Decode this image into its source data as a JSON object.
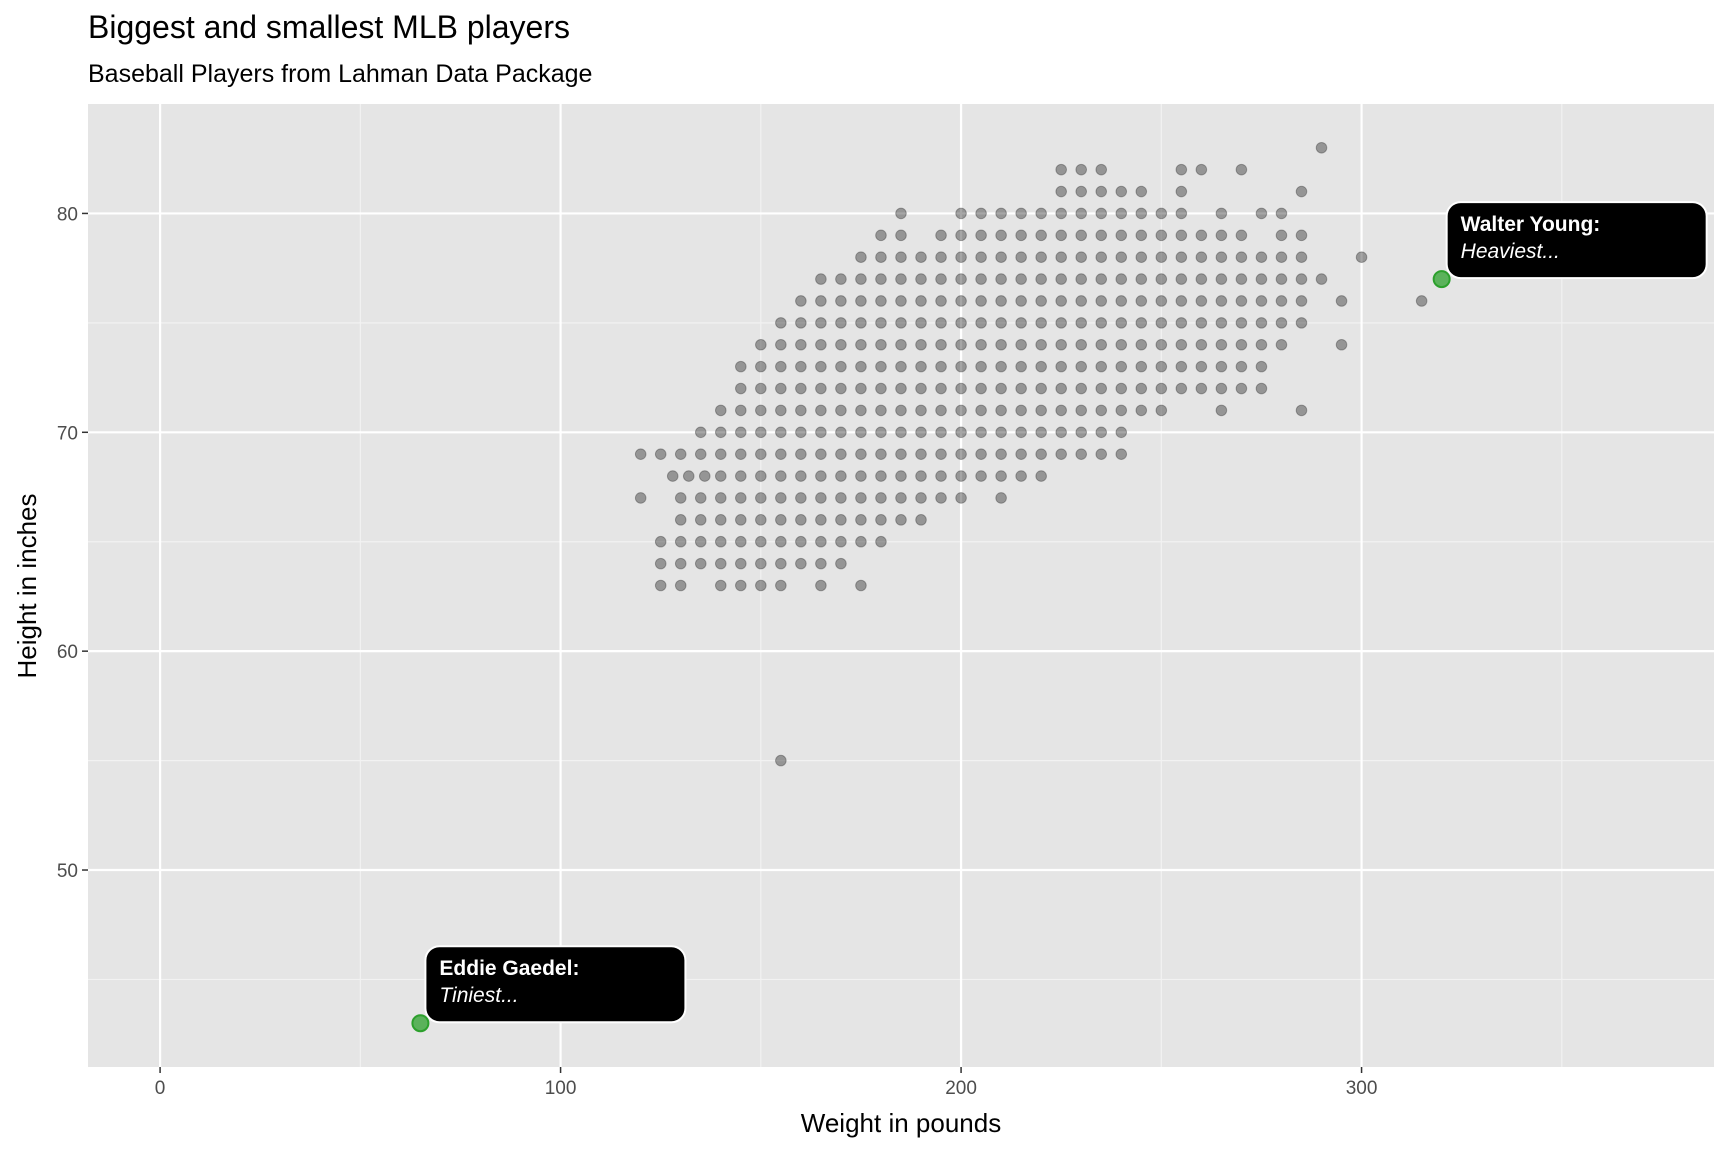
{
  "chart_data": {
    "type": "scatter",
    "title": "Biggest and smallest MLB players",
    "subtitle": "Baseball Players from Lahman Data Package",
    "xlabel": "Weight in pounds",
    "ylabel": "Height in inches",
    "xlim": [
      -18,
      388
    ],
    "ylim": [
      41,
      85
    ],
    "x_ticks": [
      0,
      100,
      200,
      300
    ],
    "y_ticks": [
      50,
      60,
      70,
      80
    ],
    "x_minor": [
      50,
      150,
      250,
      350
    ],
    "y_minor": [
      45,
      55,
      65,
      75
    ],
    "grid": true,
    "point_color": "#000000",
    "point_alpha": 0.35,
    "highlight_color": "#2ca02c",
    "panel_background": "#e5e5e5",
    "bands": [
      {
        "y": 63,
        "x": [
          125,
          130,
          140,
          145,
          150,
          155,
          165,
          175
        ]
      },
      {
        "y": 64,
        "x": [
          125,
          130,
          135,
          140,
          145,
          150,
          155,
          160,
          165,
          170
        ]
      },
      {
        "y": 65,
        "x": [
          125,
          130,
          135,
          140,
          145,
          150,
          155,
          160,
          165,
          170,
          175,
          180
        ]
      },
      {
        "y": 66,
        "x": [
          130,
          135,
          140,
          145,
          150,
          155,
          160,
          165,
          170,
          175,
          180,
          185,
          190
        ]
      },
      {
        "y": 67,
        "x": [
          120,
          130,
          135,
          140,
          145,
          150,
          155,
          160,
          165,
          170,
          175,
          180,
          185,
          190,
          195,
          200,
          210
        ]
      },
      {
        "y": 68,
        "x": [
          128,
          132,
          136,
          140,
          145,
          150,
          155,
          160,
          165,
          170,
          175,
          180,
          185,
          190,
          195,
          200,
          205,
          210,
          215,
          220
        ]
      },
      {
        "y": 69,
        "x": [
          120,
          125,
          130,
          135,
          140,
          145,
          150,
          155,
          160,
          165,
          170,
          175,
          180,
          185,
          190,
          195,
          200,
          205,
          210,
          215,
          220,
          225,
          230,
          235,
          240
        ]
      },
      {
        "y": 70,
        "x": [
          135,
          140,
          145,
          150,
          155,
          160,
          165,
          170,
          175,
          180,
          185,
          190,
          195,
          200,
          205,
          210,
          215,
          220,
          225,
          230,
          235,
          240
        ]
      },
      {
        "y": 71,
        "x": [
          140,
          145,
          150,
          155,
          160,
          165,
          170,
          175,
          180,
          185,
          190,
          195,
          200,
          205,
          210,
          215,
          220,
          225,
          230,
          235,
          240,
          245,
          250,
          265,
          285
        ]
      },
      {
        "y": 72,
        "x": [
          145,
          150,
          155,
          160,
          165,
          170,
          175,
          180,
          185,
          190,
          195,
          200,
          205,
          210,
          215,
          220,
          225,
          230,
          235,
          240,
          245,
          250,
          255,
          260,
          265,
          270,
          275
        ]
      },
      {
        "y": 73,
        "x": [
          145,
          150,
          155,
          160,
          165,
          170,
          175,
          180,
          185,
          190,
          195,
          200,
          205,
          210,
          215,
          220,
          225,
          230,
          235,
          240,
          245,
          250,
          255,
          260,
          265,
          270,
          275
        ]
      },
      {
        "y": 74,
        "x": [
          150,
          155,
          160,
          165,
          170,
          175,
          180,
          185,
          190,
          195,
          200,
          205,
          210,
          215,
          220,
          225,
          230,
          235,
          240,
          245,
          250,
          255,
          260,
          265,
          270,
          275,
          280,
          295
        ]
      },
      {
        "y": 75,
        "x": [
          155,
          160,
          165,
          170,
          175,
          180,
          185,
          190,
          195,
          200,
          205,
          210,
          215,
          220,
          225,
          230,
          235,
          240,
          245,
          250,
          255,
          260,
          265,
          270,
          275,
          280,
          285
        ]
      },
      {
        "y": 76,
        "x": [
          160,
          165,
          170,
          175,
          180,
          185,
          190,
          195,
          200,
          205,
          210,
          215,
          220,
          225,
          230,
          235,
          240,
          245,
          250,
          255,
          260,
          265,
          270,
          275,
          280,
          285,
          295,
          315
        ]
      },
      {
        "y": 77,
        "x": [
          165,
          170,
          175,
          180,
          185,
          190,
          195,
          200,
          205,
          210,
          215,
          220,
          225,
          230,
          235,
          240,
          245,
          250,
          255,
          260,
          265,
          270,
          275,
          280,
          285,
          290
        ]
      },
      {
        "y": 78,
        "x": [
          175,
          180,
          185,
          190,
          195,
          200,
          205,
          210,
          215,
          220,
          225,
          230,
          235,
          240,
          245,
          250,
          255,
          260,
          265,
          270,
          275,
          280,
          285,
          300
        ]
      },
      {
        "y": 79,
        "x": [
          180,
          185,
          195,
          200,
          205,
          210,
          215,
          220,
          225,
          230,
          235,
          240,
          245,
          250,
          255,
          260,
          265,
          270,
          280,
          285
        ]
      },
      {
        "y": 80,
        "x": [
          185,
          200,
          205,
          210,
          215,
          220,
          225,
          230,
          235,
          240,
          245,
          250,
          255,
          265,
          275,
          280
        ]
      },
      {
        "y": 81,
        "x": [
          225,
          230,
          235,
          240,
          245,
          255,
          285
        ]
      },
      {
        "y": 82,
        "x": [
          225,
          230,
          235,
          255,
          260,
          270
        ]
      },
      {
        "y": 83,
        "x": [
          290
        ]
      },
      {
        "y": 55,
        "x": [
          155
        ]
      }
    ],
    "highlights": [
      {
        "name": "Walter Young:",
        "note": "Heaviest...",
        "x": 320,
        "y": 77
      },
      {
        "name": "Eddie Gaedel:",
        "note": "Tiniest...",
        "x": 65,
        "y": 43
      }
    ]
  }
}
